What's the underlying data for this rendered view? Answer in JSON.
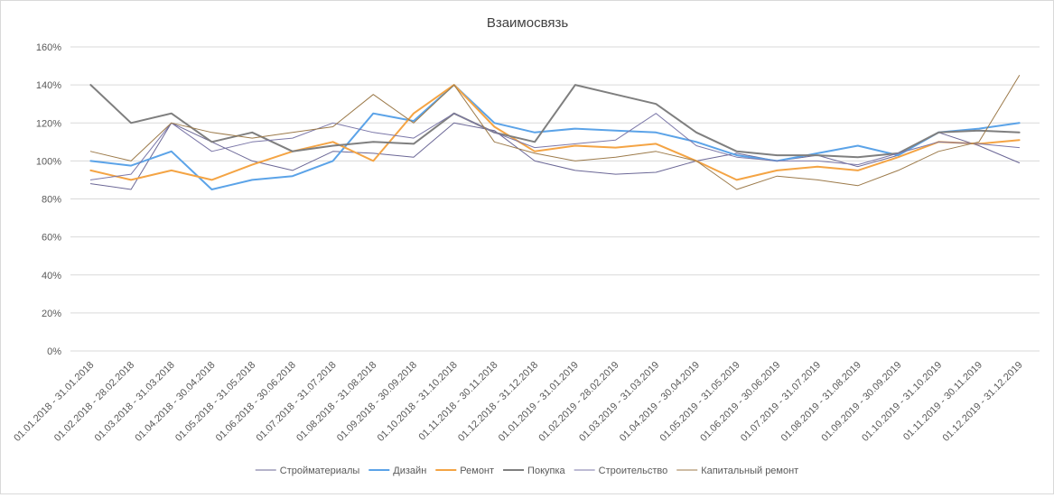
{
  "chart_data": {
    "type": "line",
    "title": "Взаимосвязь",
    "xlabel": "",
    "ylabel": "",
    "ylim": [
      0,
      160
    ],
    "y_ticks": [
      "0%",
      "20%",
      "40%",
      "60%",
      "80%",
      "100%",
      "120%",
      "140%",
      "160%"
    ],
    "grid": true,
    "legend_position": "bottom",
    "categories": [
      "01.01.2018 - 31.01.2018",
      "01.02.2018 - 28.02.2018",
      "01.03.2018 - 31.03.2018",
      "01.04.2018 - 30.04.2018",
      "01.05.2018 - 31.05.2018",
      "01.06.2018 - 30.06.2018",
      "01.07.2018 - 31.07.2018",
      "01.08.2018 - 31.08.2018",
      "01.09.2018 - 30.09.2018",
      "01.10.2018 - 31.10.2018",
      "01.11.2018 - 30.11.2018",
      "01.12.2018 - 31.12.2018",
      "01.01.2019 - 31.01.2019",
      "01.02.2019 - 28.02.2019",
      "01.03.2019 - 31.03.2019",
      "01.04.2019 - 30.04.2019",
      "01.05.2019 - 31.05.2019",
      "01.06.2019 - 30.06.2019",
      "01.07.2019 - 31.07.2019",
      "01.08.2019 - 31.08.2019",
      "01.09.2019 - 30.09.2019",
      "01.10.2019 - 31.10.2019",
      "01.11.2019 - 30.11.2019",
      "01.12.2019 - 31.12.2019"
    ],
    "series": [
      {
        "name": "Стройматериалы",
        "color": "#6b6796",
        "width": 1,
        "values": [
          88,
          85,
          120,
          110,
          100,
          95,
          105,
          104,
          102,
          120,
          116,
          100,
          95,
          93,
          94,
          100,
          104,
          100,
          103,
          97,
          103,
          115,
          108,
          99
        ]
      },
      {
        "name": "Дизайн",
        "color": "#5ba3e8",
        "width": 2,
        "values": [
          100,
          97.5,
          105,
          85,
          90,
          92,
          100,
          125,
          121,
          140,
          120,
          115,
          117,
          116,
          115,
          110,
          103,
          100,
          104,
          108,
          103,
          115,
          117,
          120
        ]
      },
      {
        "name": "Ремонт",
        "color": "#f4a444",
        "width": 2,
        "values": [
          95,
          90,
          95,
          90,
          98,
          105,
          110,
          100,
          125,
          140,
          118,
          105,
          108,
          107,
          109,
          100,
          90,
          95,
          97,
          95,
          102,
          110,
          109,
          111
        ]
      },
      {
        "name": "Покупка",
        "color": "#7f7f7f",
        "width": 2,
        "values": [
          140,
          120,
          125,
          110,
          115,
          105,
          108,
          110,
          109,
          125,
          115,
          110,
          140,
          135,
          130,
          115,
          105,
          103,
          103,
          102,
          104,
          115,
          116,
          115
        ]
      },
      {
        "name": "Строительство",
        "color": "#7b77a8",
        "width": 1,
        "values": [
          90,
          93,
          120,
          105,
          110,
          112,
          120,
          115,
          112,
          125,
          115,
          107,
          109,
          111,
          125,
          108,
          102,
          100,
          100,
          98,
          104,
          110,
          109,
          107
        ]
      },
      {
        "name": "Капитальный ремонт",
        "color": "#9c7a4a",
        "width": 1,
        "values": [
          105,
          100,
          120,
          115,
          112,
          115,
          118,
          135,
          120,
          140,
          110,
          104,
          100,
          102,
          105,
          100,
          85,
          92,
          90,
          87,
          95,
          105,
          110,
          145
        ]
      }
    ]
  }
}
